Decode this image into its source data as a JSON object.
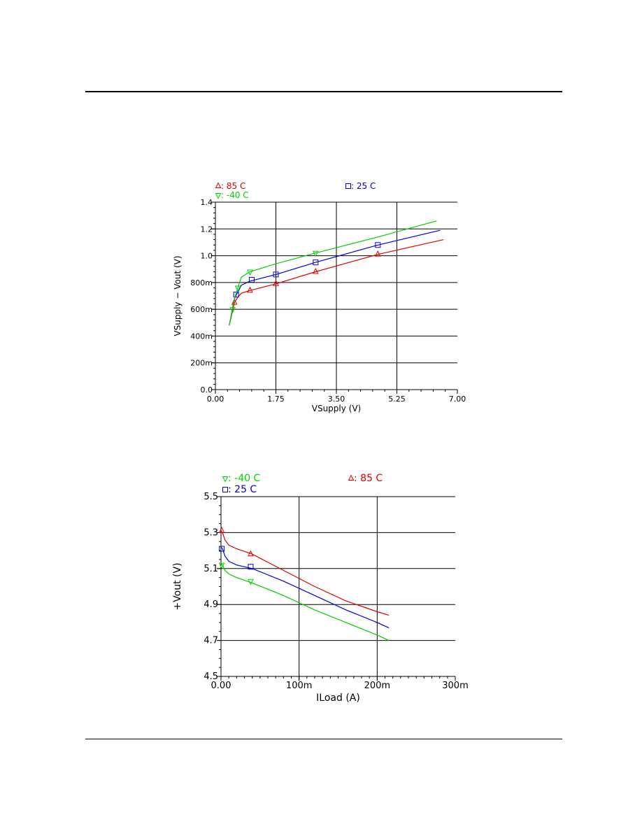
{
  "chart_data": [
    {
      "type": "line",
      "xlabel": "VSupply (V)",
      "ylabel": "VSupply − Vout (V)",
      "xlim": [
        0,
        7
      ],
      "ylim": [
        0,
        1.4
      ],
      "x_ticks": [
        0,
        1.75,
        3.5,
        5.25,
        7.0
      ],
      "x_tick_labels": [
        "0.00",
        "1.75",
        "3.50",
        "5.25",
        "7.00"
      ],
      "y_ticks": [
        0,
        0.2,
        0.4,
        0.6,
        0.8,
        1.0,
        1.2,
        1.4
      ],
      "y_tick_labels": [
        "0.0",
        "200m",
        "400m",
        "600m",
        "800m",
        "1.0",
        "1.2",
        "1.4"
      ],
      "grid": true,
      "legend": [
        {
          "label": "85 C",
          "marker": "triangle-up",
          "color": "#e00000"
        },
        {
          "label": "25 C",
          "marker": "square",
          "color": "#0000e0"
        },
        {
          "label": "-40 C",
          "marker": "triangle-down",
          "color": "#00d000"
        }
      ],
      "series": [
        {
          "name": "85 C",
          "color": "#e00000",
          "marker": "triangle-up",
          "x": [
            0.4,
            0.55,
            0.65,
            0.75,
            1.0,
            1.75,
            2.9,
            4.7,
            6.6
          ],
          "y": [
            0.48,
            0.65,
            0.69,
            0.72,
            0.74,
            0.79,
            0.88,
            1.01,
            1.12
          ],
          "marker_x": [
            0.55,
            1.0,
            1.75,
            2.9,
            4.7
          ],
          "marker_y": [
            0.65,
            0.74,
            0.79,
            0.88,
            1.01
          ]
        },
        {
          "name": "25 C",
          "color": "#0000e0",
          "marker": "square",
          "x": [
            0.4,
            0.55,
            0.65,
            0.75,
            1.0,
            1.75,
            2.9,
            4.7,
            6.5
          ],
          "y": [
            0.48,
            0.68,
            0.73,
            0.78,
            0.81,
            0.86,
            0.95,
            1.08,
            1.19
          ],
          "marker_x": [
            0.6,
            1.05,
            1.75,
            2.9,
            4.7
          ],
          "marker_y": [
            0.71,
            0.82,
            0.86,
            0.95,
            1.08
          ]
        },
        {
          "name": "-40 C",
          "color": "#00d000",
          "marker": "triangle-down",
          "x": [
            0.4,
            0.55,
            0.65,
            0.75,
            1.0,
            1.75,
            2.9,
            4.7,
            6.4
          ],
          "y": [
            0.48,
            0.68,
            0.76,
            0.84,
            0.88,
            0.94,
            1.02,
            1.14,
            1.26
          ],
          "marker_x": [
            0.5,
            0.65,
            1.0,
            2.9
          ],
          "marker_y": [
            0.6,
            0.76,
            0.88,
            1.02
          ]
        }
      ]
    },
    {
      "type": "line",
      "xlabel": "ILoad (A)",
      "ylabel": "+Vout (V)",
      "xlim": [
        0,
        0.3
      ],
      "ylim": [
        4.5,
        5.5
      ],
      "x_ticks": [
        0,
        0.1,
        0.2,
        0.3
      ],
      "x_tick_labels": [
        "0.00",
        "100m",
        "200m",
        "300m"
      ],
      "y_ticks": [
        4.5,
        4.7,
        4.9,
        5.1,
        5.3,
        5.5
      ],
      "y_tick_labels": [
        "4.5",
        "4.7",
        "4.9",
        "5.1",
        "5.3",
        "5.5"
      ],
      "grid": true,
      "legend": [
        {
          "label": "-40 C",
          "marker": "triangle-down",
          "color": "#00d000"
        },
        {
          "label": "85 C",
          "marker": "triangle-up",
          "color": "#e00000"
        },
        {
          "label": "25 C",
          "marker": "square",
          "color": "#0000e0"
        }
      ],
      "series": [
        {
          "name": "85 C",
          "color": "#e00000",
          "marker": "triangle-up",
          "x": [
            0,
            0.002,
            0.005,
            0.01,
            0.02,
            0.04,
            0.08,
            0.12,
            0.16,
            0.2,
            0.215
          ],
          "y": [
            5.31,
            5.3,
            5.26,
            5.23,
            5.21,
            5.18,
            5.09,
            5.0,
            4.92,
            4.86,
            4.84
          ],
          "marker_x": [
            0.001,
            0.038
          ],
          "marker_y": [
            5.31,
            5.18
          ]
        },
        {
          "name": "25 C",
          "color": "#0000e0",
          "marker": "square",
          "x": [
            0,
            0.002,
            0.005,
            0.01,
            0.02,
            0.04,
            0.08,
            0.12,
            0.16,
            0.2,
            0.215
          ],
          "y": [
            5.22,
            5.21,
            5.17,
            5.14,
            5.12,
            5.1,
            5.03,
            4.95,
            4.87,
            4.8,
            4.77
          ],
          "marker_x": [
            0.001,
            0.038
          ],
          "marker_y": [
            5.21,
            5.11
          ]
        },
        {
          "name": "-40 C",
          "color": "#00d000",
          "marker": "triangle-down",
          "x": [
            0,
            0.002,
            0.005,
            0.01,
            0.02,
            0.04,
            0.08,
            0.12,
            0.16,
            0.2,
            0.215
          ],
          "y": [
            5.13,
            5.12,
            5.09,
            5.07,
            5.05,
            5.02,
            4.95,
            4.87,
            4.8,
            4.73,
            4.7
          ],
          "marker_x": [
            0.001,
            0.038
          ],
          "marker_y": [
            5.12,
            5.03
          ]
        }
      ]
    }
  ]
}
